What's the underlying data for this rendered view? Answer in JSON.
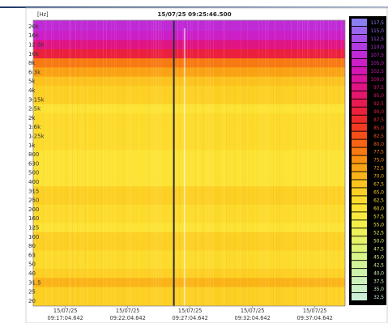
{
  "chart_data": {
    "type": "heatmap",
    "title": "15/07/25 09:25:46.500",
    "y_unit_label": "[Hz]",
    "y_axis_scale": "log",
    "y_ticks": [
      "20k",
      "16k",
      "12.5k",
      "10k",
      "8k",
      "6.3k",
      "5k",
      "4k",
      "3.15k",
      "2.5k",
      "2k",
      "1.6k",
      "1.25k",
      "1k",
      "800",
      "630",
      "500",
      "400",
      "315",
      "250",
      "200",
      "160",
      "125",
      "100",
      "80",
      "63",
      "50",
      "40",
      "31.5",
      "25",
      "20"
    ],
    "x_ticks": [
      {
        "date": "15/07/25",
        "time": "09:17:04.642"
      },
      {
        "date": "15/07/25",
        "time": "09:22:04.642"
      },
      {
        "date": "15/07/25",
        "time": "09:27:04.642"
      },
      {
        "date": "15/07/25",
        "time": "09:32:04.642"
      },
      {
        "date": "15/07/25",
        "time": "09:37:04.642"
      }
    ],
    "cursor_time": "09:25:46.500",
    "colorbar": {
      "placement": "right",
      "labels": [
        "117,5",
        "115,0",
        "112,5",
        "110,0",
        "107,5",
        "105,0",
        "102,5",
        "100,0",
        "97,5",
        "95,0",
        "92,5",
        "90,0",
        "87,5",
        "85,0",
        "82,5",
        "80,0",
        "77,5",
        "75,0",
        "72,5",
        "70,0",
        "67,5",
        "65,0",
        "62,5",
        "60,0",
        "57,5",
        "55,0",
        "52,5",
        "50,0",
        "47,5",
        "45,0",
        "42,5",
        "40,0",
        "37,5",
        "35,0",
        "32,5"
      ],
      "colors": [
        "#8a7ff0",
        "#9a66ee",
        "#a64fe8",
        "#b23ae0",
        "#c02ad6",
        "#cc1fc8",
        "#d417b4",
        "#db149c",
        "#e01484",
        "#e4166c",
        "#e81a54",
        "#eb203e",
        "#ee2a2c",
        "#f13a20",
        "#f44e18",
        "#f66414",
        "#f87a12",
        "#f99012",
        "#faa314",
        "#fbb418",
        "#fcc31e",
        "#fdd024",
        "#fddb2c",
        "#fce334",
        "#f9e93e",
        "#f4ee4a",
        "#eef157",
        "#e7f366",
        "#e0f476",
        "#d9f487",
        "#d3f398",
        "#cff2a9",
        "#ccf0b9",
        "#cbefc8",
        "#cbeed5"
      ]
    },
    "rows_level": [
      107,
      104,
      98,
      90,
      78,
      73,
      68,
      66,
      65,
      61,
      62,
      63,
      62,
      62,
      60,
      60,
      61,
      60,
      64,
      65,
      63,
      62,
      61,
      66,
      64,
      63,
      63,
      64,
      69,
      66,
      64
    ],
    "time_range": [
      "09:14:30",
      "09:39:30"
    ],
    "vertical_markers": [
      "09:25:46.500",
      "09:26:38"
    ]
  }
}
